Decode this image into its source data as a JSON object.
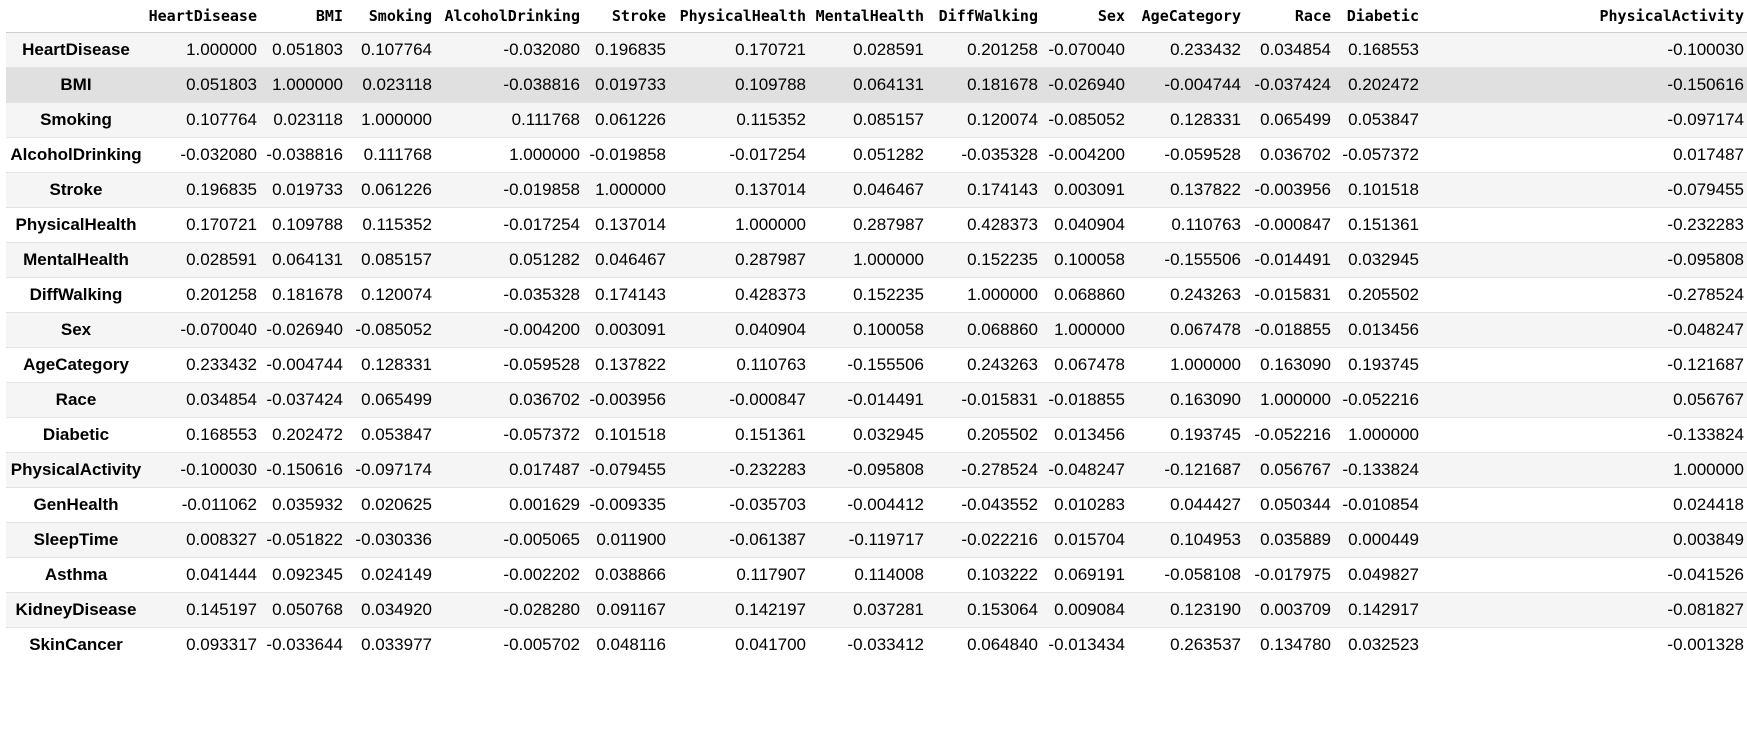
{
  "dataframe": {
    "columns": [
      "HeartDisease",
      "BMI",
      "Smoking",
      "AlcoholDrinking",
      "Stroke",
      "PhysicalHealth",
      "MentalHealth",
      "DiffWalking",
      "Sex",
      "AgeCategory",
      "Race",
      "Diabetic",
      "PhysicalActivity"
    ],
    "rows": [
      {
        "index": "HeartDisease",
        "values": [
          "1.000000",
          "0.051803",
          "0.107764",
          "-0.032080",
          "0.196835",
          "0.170721",
          "0.028591",
          "0.201258",
          "-0.070040",
          "0.233432",
          "0.034854",
          "0.168553",
          "-0.100030"
        ]
      },
      {
        "index": "BMI",
        "values": [
          "0.051803",
          "1.000000",
          "0.023118",
          "-0.038816",
          "0.019733",
          "0.109788",
          "0.064131",
          "0.181678",
          "-0.026940",
          "-0.004744",
          "-0.037424",
          "0.202472",
          "-0.150616"
        ]
      },
      {
        "index": "Smoking",
        "values": [
          "0.107764",
          "0.023118",
          "1.000000",
          "0.111768",
          "0.061226",
          "0.115352",
          "0.085157",
          "0.120074",
          "-0.085052",
          "0.128331",
          "0.065499",
          "0.053847",
          "-0.097174"
        ]
      },
      {
        "index": "AlcoholDrinking",
        "values": [
          "-0.032080",
          "-0.038816",
          "0.111768",
          "1.000000",
          "-0.019858",
          "-0.017254",
          "0.051282",
          "-0.035328",
          "-0.004200",
          "-0.059528",
          "0.036702",
          "-0.057372",
          "0.017487"
        ]
      },
      {
        "index": "Stroke",
        "values": [
          "0.196835",
          "0.019733",
          "0.061226",
          "-0.019858",
          "1.000000",
          "0.137014",
          "0.046467",
          "0.174143",
          "0.003091",
          "0.137822",
          "-0.003956",
          "0.101518",
          "-0.079455"
        ]
      },
      {
        "index": "PhysicalHealth",
        "values": [
          "0.170721",
          "0.109788",
          "0.115352",
          "-0.017254",
          "0.137014",
          "1.000000",
          "0.287987",
          "0.428373",
          "0.040904",
          "0.110763",
          "-0.000847",
          "0.151361",
          "-0.232283"
        ]
      },
      {
        "index": "MentalHealth",
        "values": [
          "0.028591",
          "0.064131",
          "0.085157",
          "0.051282",
          "0.046467",
          "0.287987",
          "1.000000",
          "0.152235",
          "0.100058",
          "-0.155506",
          "-0.014491",
          "0.032945",
          "-0.095808"
        ]
      },
      {
        "index": "DiffWalking",
        "values": [
          "0.201258",
          "0.181678",
          "0.120074",
          "-0.035328",
          "0.174143",
          "0.428373",
          "0.152235",
          "1.000000",
          "0.068860",
          "0.243263",
          "-0.015831",
          "0.205502",
          "-0.278524"
        ]
      },
      {
        "index": "Sex",
        "values": [
          "-0.070040",
          "-0.026940",
          "-0.085052",
          "-0.004200",
          "0.003091",
          "0.040904",
          "0.100058",
          "0.068860",
          "1.000000",
          "0.067478",
          "-0.018855",
          "0.013456",
          "-0.048247"
        ]
      },
      {
        "index": "AgeCategory",
        "values": [
          "0.233432",
          "-0.004744",
          "0.128331",
          "-0.059528",
          "0.137822",
          "0.110763",
          "-0.155506",
          "0.243263",
          "0.067478",
          "1.000000",
          "0.163090",
          "0.193745",
          "-0.121687"
        ]
      },
      {
        "index": "Race",
        "values": [
          "0.034854",
          "-0.037424",
          "0.065499",
          "0.036702",
          "-0.003956",
          "-0.000847",
          "-0.014491",
          "-0.015831",
          "-0.018855",
          "0.163090",
          "1.000000",
          "-0.052216",
          "0.056767"
        ]
      },
      {
        "index": "Diabetic",
        "values": [
          "0.168553",
          "0.202472",
          "0.053847",
          "-0.057372",
          "0.101518",
          "0.151361",
          "0.032945",
          "0.205502",
          "0.013456",
          "0.193745",
          "-0.052216",
          "1.000000",
          "-0.133824"
        ]
      },
      {
        "index": "PhysicalActivity",
        "values": [
          "-0.100030",
          "-0.150616",
          "-0.097174",
          "0.017487",
          "-0.079455",
          "-0.232283",
          "-0.095808",
          "-0.278524",
          "-0.048247",
          "-0.121687",
          "0.056767",
          "-0.133824",
          "1.000000"
        ]
      },
      {
        "index": "GenHealth",
        "values": [
          "-0.011062",
          "0.035932",
          "0.020625",
          "0.001629",
          "-0.009335",
          "-0.035703",
          "-0.004412",
          "-0.043552",
          "0.010283",
          "0.044427",
          "0.050344",
          "-0.010854",
          "0.024418"
        ]
      },
      {
        "index": "SleepTime",
        "values": [
          "0.008327",
          "-0.051822",
          "-0.030336",
          "-0.005065",
          "0.011900",
          "-0.061387",
          "-0.119717",
          "-0.022216",
          "0.015704",
          "0.104953",
          "0.035889",
          "0.000449",
          "0.003849"
        ]
      },
      {
        "index": "Asthma",
        "values": [
          "0.041444",
          "0.092345",
          "0.024149",
          "-0.002202",
          "0.038866",
          "0.117907",
          "0.114008",
          "0.103222",
          "0.069191",
          "-0.058108",
          "-0.017975",
          "0.049827",
          "-0.041526"
        ]
      },
      {
        "index": "KidneyDisease",
        "values": [
          "0.145197",
          "0.050768",
          "0.034920",
          "-0.028280",
          "0.091167",
          "0.142197",
          "0.037281",
          "0.153064",
          "0.009084",
          "0.123190",
          "0.003709",
          "0.142917",
          "-0.081827"
        ]
      },
      {
        "index": "SkinCancer",
        "values": [
          "0.093317",
          "-0.033644",
          "0.033977",
          "-0.005702",
          "0.048116",
          "0.041700",
          "-0.033412",
          "0.064840",
          "-0.013434",
          "0.263537",
          "0.134780",
          "0.032523",
          "-0.001328"
        ]
      }
    ]
  }
}
